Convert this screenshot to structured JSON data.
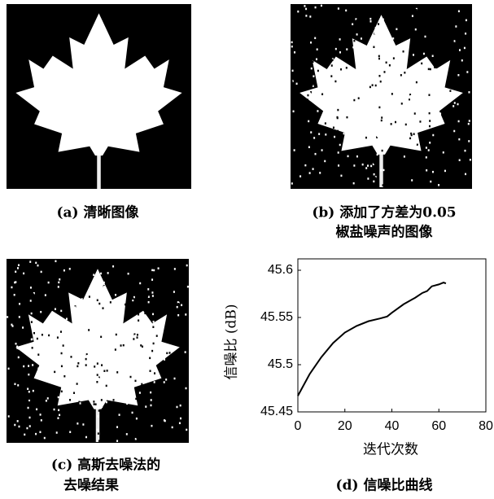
{
  "panels": {
    "a": {
      "caption": "(a) 清晰图像"
    },
    "b": {
      "caption": [
        "(b) 添加了方差为0.05",
        "椒盐噪声的图像"
      ]
    },
    "c": {
      "caption": [
        "(c) 高斯去噪法的",
        "去噪结果"
      ]
    },
    "d": {
      "caption": "(d) 信噪比曲线"
    }
  },
  "chart_data": {
    "type": "line",
    "x_label": "迭代次数",
    "y_label": "信噪比 (dB)",
    "x": [
      0,
      5,
      10,
      15,
      20,
      25,
      30,
      35,
      38,
      40,
      45,
      50,
      53,
      55,
      57,
      60,
      62,
      63
    ],
    "series": [
      {
        "color": "#000000",
        "values": [
          45.467,
          45.49,
          45.508,
          45.523,
          45.534,
          45.541,
          45.546,
          45.549,
          45.551,
          45.555,
          45.564,
          45.571,
          45.576,
          45.578,
          45.583,
          45.585,
          45.587,
          45.586
        ]
      }
    ],
    "xlim": [
      0,
      80
    ],
    "xticks": [
      0,
      20,
      40,
      60,
      80
    ],
    "ylim": [
      45.45,
      45.6
    ],
    "yticks": [
      45.45,
      45.5,
      45.55,
      45.6
    ]
  }
}
